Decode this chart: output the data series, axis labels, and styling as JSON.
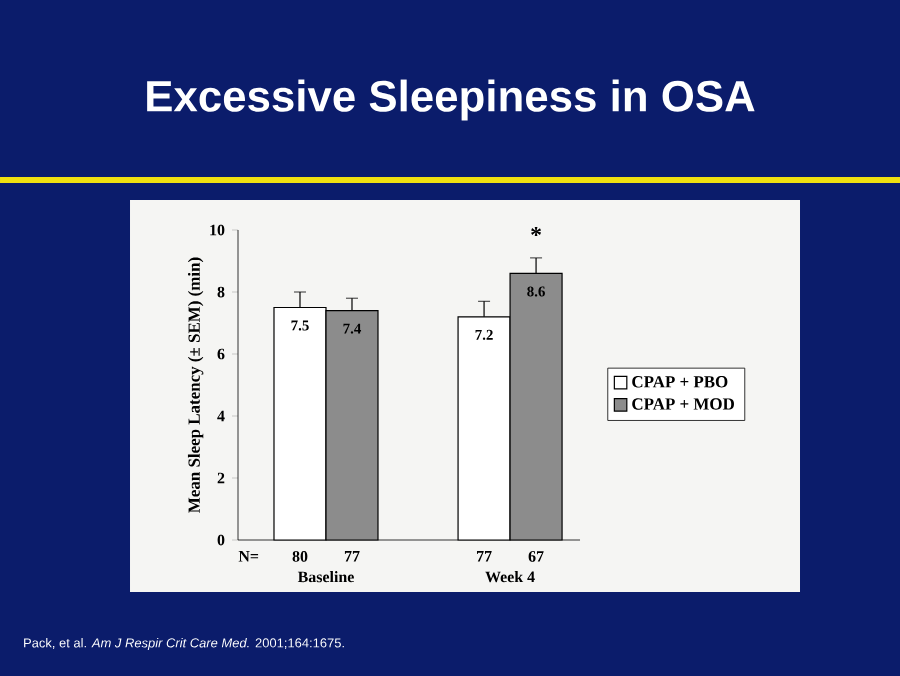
{
  "chart_data": {
    "type": "bar",
    "title": "Excessive Sleepiness in OSA",
    "ylabel": "Mean Sleep Latency (± SEM) (min)",
    "categories": [
      "Baseline",
      "Week 4"
    ],
    "series": [
      {
        "name": "CPAP + PBO",
        "color": "#ffffff",
        "values": [
          7.5,
          7.2
        ],
        "errors": [
          0.5,
          0.5
        ]
      },
      {
        "name": "CPAP + MOD",
        "color": "#8c8c8c",
        "values": [
          7.4,
          8.6
        ],
        "errors": [
          0.4,
          0.5
        ]
      }
    ],
    "ylim": [
      0,
      10
    ],
    "yticks": [
      0,
      2,
      4,
      6,
      8,
      10
    ],
    "data_labels": true,
    "legend": "right",
    "grid": false,
    "annotations": [
      "N=",
      "80",
      "77",
      "77",
      "67",
      "*",
      "Pack, et al. *Am J Respir Crit Care Med.* 2001;164:1675."
    ]
  }
}
